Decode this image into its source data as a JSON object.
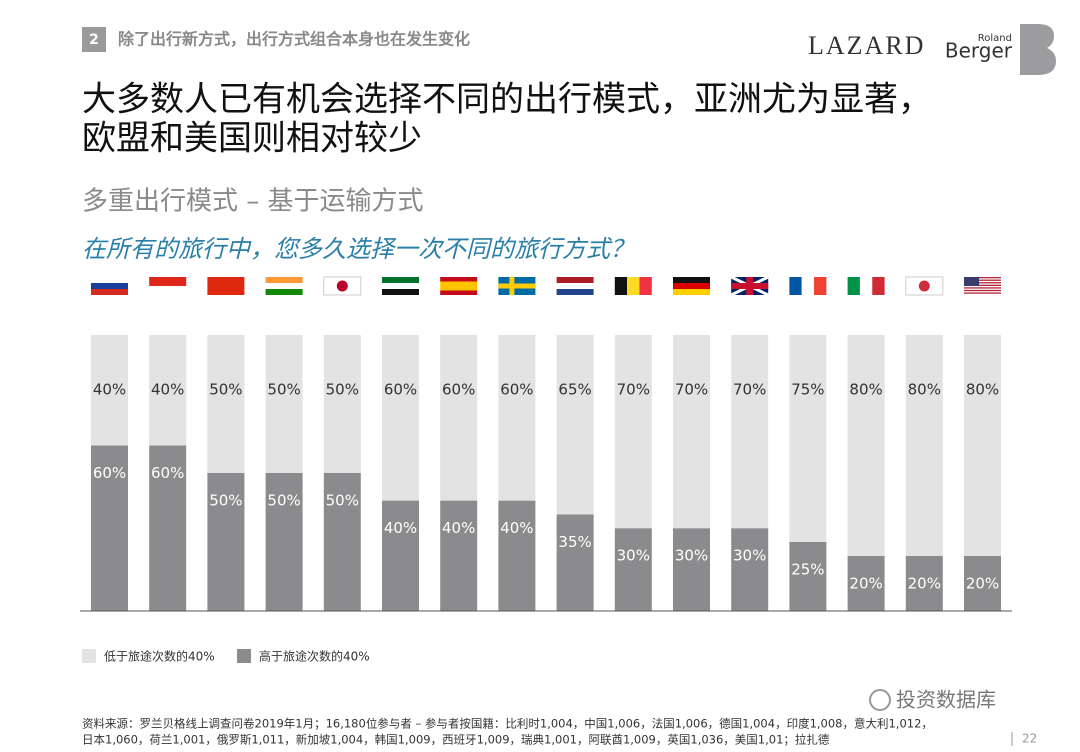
{
  "header": {
    "section_number": "2",
    "section_title": "除了出行新方式，出行方式组合本身也在发生变化",
    "logo_left": "LAZARD",
    "logo_right_small": "Roland",
    "logo_right": "Berger"
  },
  "title_lines": [
    "大多数人已有机会选择不同的出行模式，亚洲尤为显著，",
    "欧盟和美国则相对较少"
  ],
  "chart_data": {
    "type": "bar",
    "stacked": true,
    "subtitle": "多重出行模式 – 基于运输方式",
    "question": "在所有的旅行中，您多久选择一次不同的旅行方式？",
    "ylim": [
      0,
      100
    ],
    "series": [
      {
        "name": "高于旅途次数的40%",
        "color": "#8b8b8d",
        "label_color": "#ffffff",
        "values": [
          60,
          60,
          50,
          50,
          50,
          40,
          40,
          40,
          35,
          30,
          30,
          30,
          25,
          20,
          20,
          20
        ],
        "value_labels": [
          "60%",
          "60%",
          "50%",
          "50%",
          "50%",
          "40%",
          "40%",
          "40%",
          "35%",
          "30%",
          "30%",
          "30%",
          "25%",
          "20%",
          "20%",
          "20%"
        ]
      },
      {
        "name": "低于旅途次数的40%",
        "color": "#e3e3e4",
        "label_color": "#333333",
        "values": [
          40,
          40,
          50,
          50,
          50,
          60,
          60,
          60,
          65,
          70,
          70,
          70,
          75,
          80,
          80,
          80
        ],
        "value_labels": [
          "40%",
          "40%",
          "50%",
          "50%",
          "50%",
          "60%",
          "60%",
          "60%",
          "65%",
          "70%",
          "70%",
          "70%",
          "75%",
          "80%",
          "80%",
          "80%"
        ]
      }
    ]
  },
  "notes": [
    "资料来源：罗兰贝格线上调查问卷2019年1月；16,180位参与者 – 参与者按国籍：比利时1,004，中国1,006，法国1,006，德国1,004，印度1,008，意大利1,012，",
    "日本1,060，荷兰1,001，俄罗斯1,011，新加坡1,004，韩国1,009，西班牙1,009，瑞典1,001，阿联酋1,009，英国1,036，美国1,01；拉扎德"
  ],
  "watermark": "投资数据库",
  "page_number": "22"
}
